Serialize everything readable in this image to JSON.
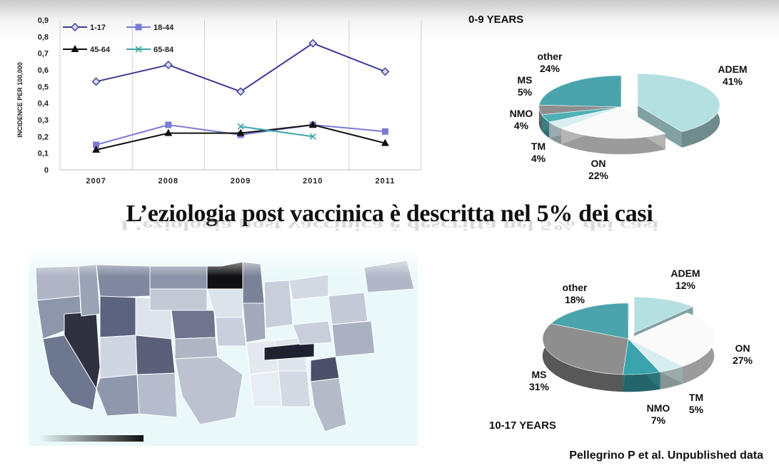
{
  "headline": "L’eziologia post vaccinica è descritta nel 5% dei casi",
  "footer": "Pellegrino P et al. Unpublished data",
  "chart_data": [
    {
      "type": "line",
      "ylabel": "INCIDENCE PER 100,000",
      "xlabel": "",
      "x": [
        "2007",
        "2008",
        "2009",
        "2010",
        "2011"
      ],
      "ylim": [
        0,
        0.9
      ],
      "yticks": [
        "0",
        "0,1",
        "0,2",
        "0,3",
        "0,4",
        "0,5",
        "0,6",
        "0,7",
        "0,8",
        "0,9"
      ],
      "grid": "vertical",
      "legend_placement": "top-left",
      "series": [
        {
          "name": "1-17",
          "values": [
            0.53,
            0.63,
            0.47,
            0.76,
            0.59
          ],
          "color": "#3c3c96",
          "marker": "diamond"
        },
        {
          "name": "18-44",
          "values": [
            0.15,
            0.27,
            0.21,
            0.27,
            0.23
          ],
          "color": "#7b7bd6",
          "marker": "square"
        },
        {
          "name": "45-64",
          "values": [
            0.12,
            0.22,
            0.22,
            0.27,
            0.16
          ],
          "color": "#111111",
          "marker": "triangle"
        },
        {
          "name": "65-84",
          "values": [
            null,
            null,
            0.26,
            0.2,
            null
          ],
          "color": "#3aa6a6",
          "marker": "cross"
        }
      ]
    },
    {
      "type": "pie",
      "title": "0-9 YEARS",
      "slices": [
        {
          "label": "ADEM",
          "value": 41,
          "display": "41%",
          "color": "#b4e0e2"
        },
        {
          "label": "ON",
          "value": 22,
          "display": "22%",
          "color": "#fafafa"
        },
        {
          "label": "TM",
          "value": 4,
          "display": "4%",
          "color": "#d8eef0"
        },
        {
          "label": "NMO",
          "value": 4,
          "display": "4%",
          "color": "#4fb0b6"
        },
        {
          "label": "MS",
          "value": 5,
          "display": "5%",
          "color": "#8e8e8e"
        },
        {
          "label": "other",
          "value": 24,
          "display": "24%",
          "color": "#4aa3ad"
        }
      ]
    },
    {
      "type": "pie",
      "title": "10-17 YEARS",
      "slices": [
        {
          "label": "ADEM",
          "value": 12,
          "display": "12%",
          "color": "#b4e0e2"
        },
        {
          "label": "ON",
          "value": 27,
          "display": "27%",
          "color": "#fafafa"
        },
        {
          "label": "TM",
          "value": 5,
          "display": "5%",
          "color": "#d8eef0"
        },
        {
          "label": "NMO",
          "value": 7,
          "display": "7%",
          "color": "#3aa3ab"
        },
        {
          "label": "MS",
          "value": 31,
          "display": "31%",
          "color": "#8e8e8e"
        },
        {
          "label": "other",
          "value": 18,
          "display": "18%",
          "color": "#4aa3ad"
        }
      ]
    }
  ]
}
